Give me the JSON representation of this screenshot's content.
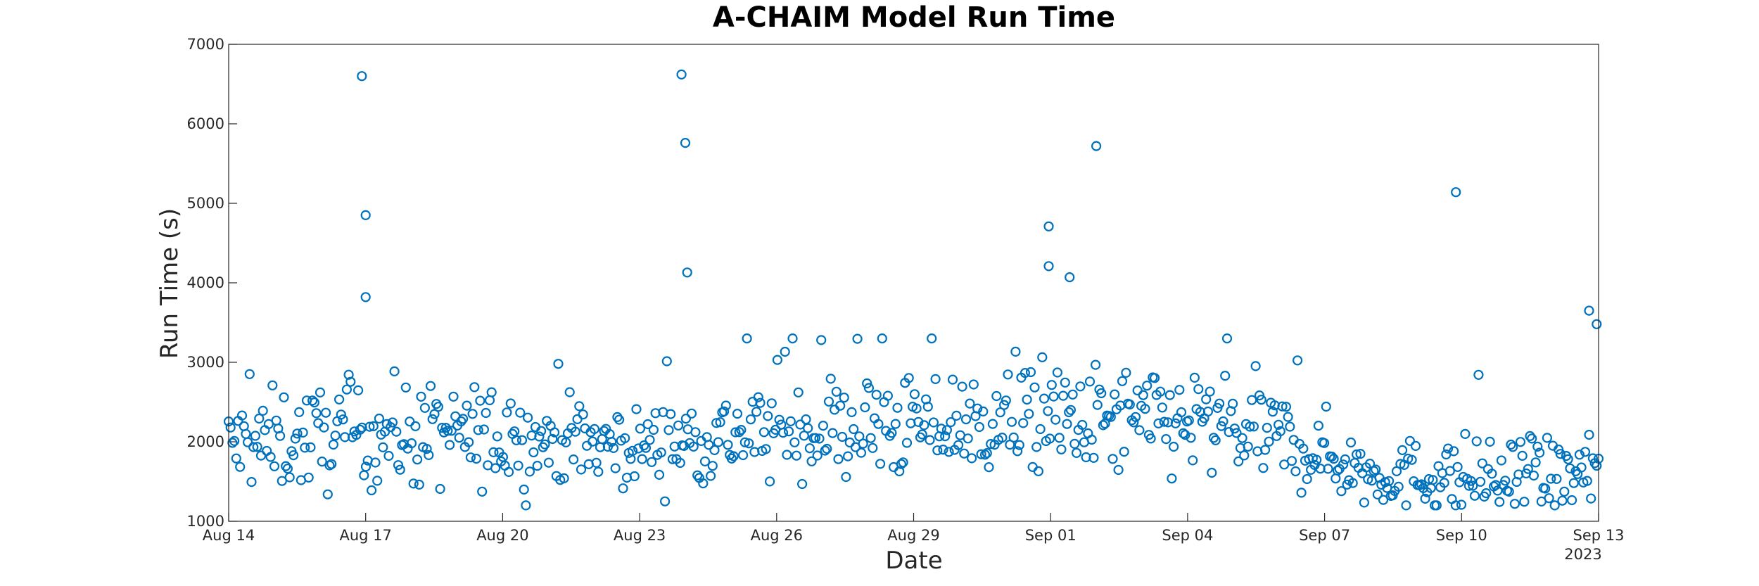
{
  "chart_data": {
    "type": "scatter",
    "title": "A-CHAIM Model Run Time",
    "xlabel": "Date",
    "ylabel": "Run Time (s)",
    "x_axis_year_label": "2023",
    "xlim": [
      "2023-08-14",
      "2023-09-13"
    ],
    "ylim": [
      1000,
      7000
    ],
    "xticks": [
      {
        "date": "2023-08-14",
        "label": "Aug 14"
      },
      {
        "date": "2023-08-17",
        "label": "Aug 17"
      },
      {
        "date": "2023-08-20",
        "label": "Aug 20"
      },
      {
        "date": "2023-08-23",
        "label": "Aug 23"
      },
      {
        "date": "2023-08-26",
        "label": "Aug 26"
      },
      {
        "date": "2023-08-29",
        "label": "Aug 29"
      },
      {
        "date": "2023-09-01",
        "label": "Sep 01"
      },
      {
        "date": "2023-09-04",
        "label": "Sep 04"
      },
      {
        "date": "2023-09-07",
        "label": "Sep 07"
      },
      {
        "date": "2023-09-10",
        "label": "Sep 10"
      },
      {
        "date": "2023-09-13",
        "label": "Sep 13"
      }
    ],
    "yticks": [
      {
        "value": 1000,
        "label": "1000"
      },
      {
        "value": 2000,
        "label": "2000"
      },
      {
        "value": 3000,
        "label": "3000"
      },
      {
        "value": 4000,
        "label": "4000"
      },
      {
        "value": 5000,
        "label": "5000"
      },
      {
        "value": 6000,
        "label": "6000"
      },
      {
        "value": 7000,
        "label": "7000"
      }
    ],
    "grid": false,
    "marker": "open-circle",
    "color": "#0072BD",
    "notable_points": [
      {
        "x": "2023-08-16T22:00",
        "y": 6600
      },
      {
        "x": "2023-08-17T00:00",
        "y": 4850
      },
      {
        "x": "2023-08-17T00:00",
        "y": 3820
      },
      {
        "x": "2023-08-23T22:00",
        "y": 6620
      },
      {
        "x": "2023-08-24T00:00",
        "y": 5760
      },
      {
        "x": "2023-08-24T01:00",
        "y": 4130
      },
      {
        "x": "2023-08-31T23:00",
        "y": 4710
      },
      {
        "x": "2023-08-31T23:00",
        "y": 4210
      },
      {
        "x": "2023-09-01T10:00",
        "y": 4070
      },
      {
        "x": "2023-09-02T00:00",
        "y": 5720
      },
      {
        "x": "2023-09-09T21:00",
        "y": 5140
      },
      {
        "x": "2023-09-12T19:00",
        "y": 3650
      },
      {
        "x": "2023-09-12T23:00",
        "y": 3480
      }
    ],
    "trend": [
      {
        "day": 0,
        "mean": 1950,
        "spread": 300
      },
      {
        "day": 3,
        "mean": 2100,
        "spread": 330
      },
      {
        "day": 6,
        "mean": 2050,
        "spread": 320
      },
      {
        "day": 9,
        "mean": 1950,
        "spread": 230
      },
      {
        "day": 12,
        "mean": 2150,
        "spread": 330
      },
      {
        "day": 15,
        "mean": 2200,
        "spread": 330
      },
      {
        "day": 18,
        "mean": 2250,
        "spread": 350
      },
      {
        "day": 21,
        "mean": 2250,
        "spread": 350
      },
      {
        "day": 23,
        "mean": 2050,
        "spread": 300
      },
      {
        "day": 25,
        "mean": 1600,
        "spread": 200
      },
      {
        "day": 27,
        "mean": 1550,
        "spread": 250
      },
      {
        "day": 28,
        "mean": 1500,
        "spread": 230
      },
      {
        "day": 30,
        "mean": 1600,
        "spread": 280
      }
    ],
    "sample_count": 720
  }
}
